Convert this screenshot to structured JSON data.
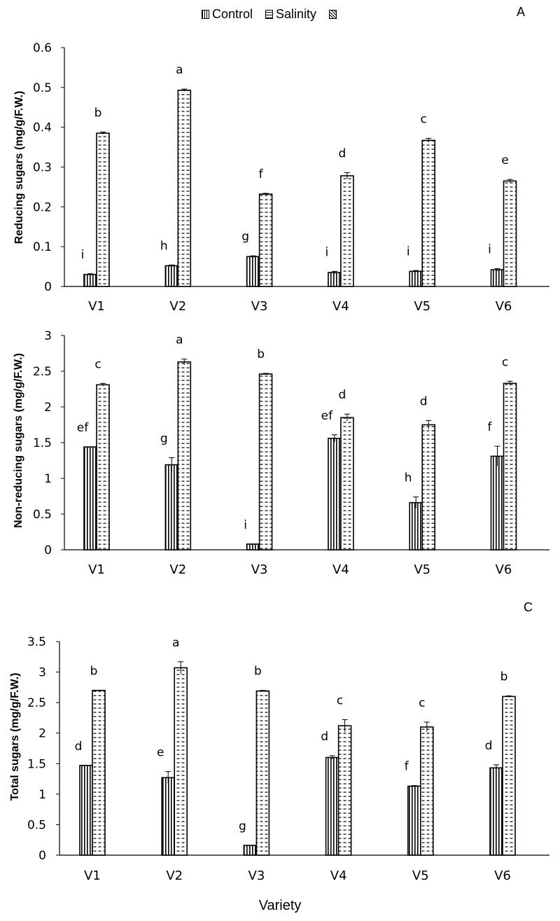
{
  "legend": {
    "control": "Control",
    "salinity": "Salinity",
    "third": ""
  },
  "x_title": "Variety",
  "panels": {
    "a": {
      "tag": "A",
      "ylabel": "Reducing sugars (mg/g/F.W.)"
    },
    "b": {
      "tag": "",
      "ylabel": "Non-reducing sugars (mg/g/F.W.)"
    },
    "c": {
      "tag": "C",
      "ylabel": "Total sugars (mg/g/F.W.)"
    }
  },
  "chart_data": [
    {
      "type": "bar",
      "title": "A",
      "xlabel": "",
      "ylabel": "Reducing sugars (mg/g/F.W.)",
      "categories": [
        "V1",
        "V2",
        "V3",
        "V4",
        "V5",
        "V6"
      ],
      "ylim": [
        0,
        0.6
      ],
      "yticks": [
        "0",
        "0.1",
        "0.2",
        "0.3",
        "0.4",
        "0.5",
        "0.6"
      ],
      "grid": false,
      "legend_position": "top",
      "series": [
        {
          "name": "Control",
          "values": [
            0.03,
            0.052,
            0.075,
            0.035,
            0.038,
            0.042
          ],
          "errors": [
            0.002,
            0.002,
            0.002,
            0.003,
            0.002,
            0.003
          ],
          "letters": [
            "i",
            "h",
            "g",
            "i",
            "i",
            "i"
          ]
        },
        {
          "name": "Salinity",
          "values": [
            0.385,
            0.493,
            0.232,
            0.278,
            0.367,
            0.265
          ],
          "errors": [
            0.003,
            0.003,
            0.002,
            0.008,
            0.005,
            0.004
          ],
          "letters": [
            "b",
            "a",
            "f",
            "d",
            "c",
            "e"
          ]
        }
      ]
    },
    {
      "type": "bar",
      "title": "",
      "xlabel": "",
      "ylabel": "Non-reducing sugars (mg/g/F.W.)",
      "categories": [
        "V1",
        "V2",
        "V3",
        "V4",
        "V5",
        "V6"
      ],
      "ylim": [
        0,
        3
      ],
      "yticks": [
        "0",
        "0.5",
        "1",
        "1.5",
        "2",
        "2.5",
        "3"
      ],
      "grid": false,
      "series": [
        {
          "name": "Control",
          "values": [
            1.44,
            1.19,
            0.08,
            1.56,
            0.66,
            1.31
          ],
          "errors": [
            0.0,
            0.1,
            0.0,
            0.05,
            0.08,
            0.14
          ],
          "letters": [
            "ef",
            "g",
            "i",
            "ef",
            "h",
            "f"
          ]
        },
        {
          "name": "Salinity",
          "values": [
            2.31,
            2.63,
            2.46,
            1.85,
            1.75,
            2.33
          ],
          "errors": [
            0.02,
            0.04,
            0.01,
            0.05,
            0.06,
            0.03
          ],
          "letters": [
            "c",
            "a",
            "b",
            "d",
            "d",
            "c"
          ]
        }
      ]
    },
    {
      "type": "bar",
      "title": "C",
      "xlabel": "Variety",
      "ylabel": "Total sugars (mg/g/F.W.)",
      "categories": [
        "V1",
        "V2",
        "V3",
        "V4",
        "V5",
        "V6"
      ],
      "ylim": [
        0,
        3.5
      ],
      "yticks": [
        "0",
        "0.5",
        "1",
        "1.5",
        "2",
        "2.5",
        "3",
        "3.5"
      ],
      "grid": false,
      "series": [
        {
          "name": "Control",
          "values": [
            1.47,
            1.27,
            0.16,
            1.6,
            1.13,
            1.43
          ],
          "errors": [
            0.0,
            0.1,
            0.0,
            0.03,
            0.01,
            0.05
          ],
          "letters": [
            "d",
            "e",
            "g",
            "d",
            "f",
            "d"
          ]
        },
        {
          "name": "Salinity",
          "values": [
            2.7,
            3.07,
            2.69,
            2.12,
            2.1,
            2.6
          ],
          "errors": [
            0.0,
            0.1,
            0.01,
            0.1,
            0.08,
            0.01
          ],
          "letters": [
            "b",
            "a",
            "b",
            "c",
            "c",
            "b"
          ]
        }
      ]
    }
  ]
}
